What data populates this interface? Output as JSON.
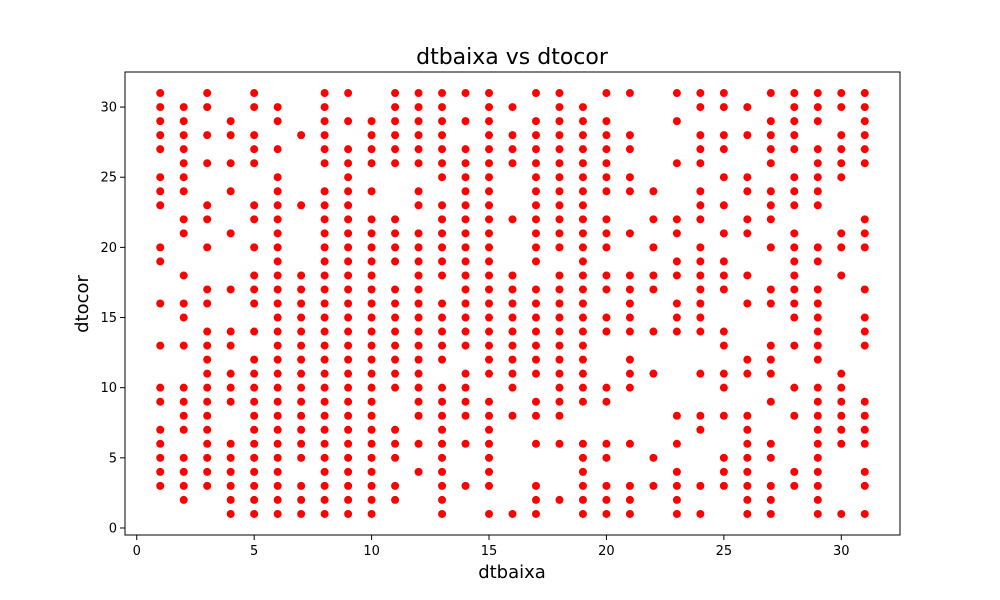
{
  "chart_data": {
    "type": "scatter",
    "title": "dtbaixa vs dtocor",
    "xlabel": "dtbaixa",
    "ylabel": "dtocor",
    "xlim": [
      -0.5,
      32.5
    ],
    "ylim": [
      -0.5,
      32.5
    ],
    "xticks": [
      0,
      5,
      10,
      15,
      20,
      25,
      30
    ],
    "yticks": [
      0,
      5,
      10,
      15,
      20,
      25,
      30
    ],
    "grid": false,
    "color": "#ff0000",
    "columns": [
      {
        "x": 1,
        "y": [
          3,
          4,
          5,
          6,
          7,
          9,
          10,
          13,
          16,
          19,
          20,
          23,
          24,
          25,
          27,
          28,
          29,
          30,
          31
        ]
      },
      {
        "x": 2,
        "y": [
          2,
          3,
          4,
          5,
          7,
          8,
          9,
          10,
          13,
          15,
          16,
          18,
          21,
          22,
          24,
          25,
          26,
          27,
          28,
          29,
          30
        ]
      },
      {
        "x": 3,
        "y": [
          3,
          4,
          5,
          6,
          7,
          8,
          9,
          10,
          11,
          12,
          13,
          14,
          16,
          17,
          20,
          22,
          23,
          26,
          28,
          30,
          31
        ]
      },
      {
        "x": 4,
        "y": [
          1,
          2,
          3,
          4,
          5,
          6,
          9,
          10,
          11,
          13,
          14,
          17,
          21,
          24,
          26,
          28,
          29
        ]
      },
      {
        "x": 5,
        "y": [
          1,
          2,
          3,
          4,
          5,
          6,
          7,
          8,
          9,
          10,
          11,
          12,
          14,
          16,
          17,
          18,
          20,
          22,
          23,
          26,
          27,
          28,
          30,
          31
        ]
      },
      {
        "x": 6,
        "y": [
          1,
          2,
          3,
          4,
          5,
          6,
          7,
          8,
          9,
          10,
          11,
          12,
          13,
          14,
          15,
          16,
          17,
          18,
          19,
          20,
          21,
          22,
          23,
          24,
          25,
          27,
          29,
          30
        ]
      },
      {
        "x": 7,
        "y": [
          1,
          2,
          3,
          5,
          6,
          7,
          8,
          9,
          10,
          11,
          12,
          13,
          14,
          15,
          16,
          17,
          18,
          23,
          28
        ]
      },
      {
        "x": 8,
        "y": [
          1,
          2,
          3,
          4,
          5,
          6,
          7,
          8,
          9,
          10,
          11,
          12,
          13,
          14,
          15,
          16,
          17,
          18,
          19,
          20,
          21,
          22,
          23,
          24,
          26,
          27,
          28,
          29,
          30,
          31
        ]
      },
      {
        "x": 9,
        "y": [
          1,
          2,
          3,
          4,
          5,
          6,
          7,
          8,
          9,
          10,
          11,
          12,
          13,
          14,
          15,
          16,
          17,
          18,
          19,
          20,
          21,
          22,
          23,
          24,
          25,
          26,
          27,
          29,
          31
        ]
      },
      {
        "x": 10,
        "y": [
          1,
          2,
          3,
          4,
          5,
          6,
          7,
          8,
          9,
          10,
          11,
          12,
          13,
          14,
          15,
          16,
          17,
          18,
          19,
          20,
          21,
          22,
          24,
          26,
          27,
          28,
          29
        ]
      },
      {
        "x": 11,
        "y": [
          2,
          3,
          5,
          6,
          7,
          10,
          11,
          12,
          13,
          14,
          15,
          16,
          17,
          19,
          20,
          21,
          22,
          26,
          27,
          28,
          29,
          30,
          31
        ]
      },
      {
        "x": 12,
        "y": [
          4,
          6,
          8,
          9,
          10,
          11,
          12,
          13,
          14,
          15,
          16,
          17,
          18,
          19,
          20,
          21,
          23,
          24,
          26,
          27,
          28,
          29,
          30,
          31
        ]
      },
      {
        "x": 13,
        "y": [
          1,
          2,
          3,
          4,
          5,
          6,
          7,
          8,
          9,
          10,
          12,
          13,
          14,
          15,
          16,
          18,
          19,
          20,
          21,
          22,
          23,
          25,
          26,
          27,
          28,
          29,
          30,
          31
        ]
      },
      {
        "x": 14,
        "y": [
          3,
          6,
          8,
          9,
          10,
          11,
          13,
          14,
          15,
          16,
          17,
          18,
          19,
          20,
          21,
          22,
          23,
          24,
          25,
          26,
          27,
          29,
          31
        ]
      },
      {
        "x": 15,
        "y": [
          1,
          3,
          4,
          5,
          6,
          7,
          8,
          9,
          11,
          12,
          13,
          14,
          15,
          16,
          17,
          18,
          19,
          20,
          21,
          22,
          23,
          24,
          25,
          26,
          27,
          28,
          29,
          30,
          31
        ]
      },
      {
        "x": 16,
        "y": [
          1,
          8,
          10,
          11,
          12,
          13,
          14,
          15,
          16,
          17,
          18,
          22,
          26,
          27,
          28,
          30
        ]
      },
      {
        "x": 17,
        "y": [
          1,
          2,
          3,
          6,
          8,
          9,
          11,
          12,
          13,
          14,
          15,
          16,
          17,
          19,
          20,
          21,
          22,
          23,
          24,
          25,
          26,
          27,
          28,
          29,
          31
        ]
      },
      {
        "x": 18,
        "y": [
          2,
          6,
          8,
          9,
          10,
          11,
          12,
          13,
          14,
          15,
          16,
          17,
          18,
          20,
          21,
          22,
          23,
          24,
          25,
          26,
          27,
          28,
          29,
          30,
          31
        ]
      },
      {
        "x": 19,
        "y": [
          1,
          2,
          3,
          4,
          5,
          6,
          9,
          10,
          11,
          12,
          13,
          14,
          15,
          16,
          17,
          18,
          19,
          20,
          21,
          22,
          23,
          24,
          25,
          26,
          27,
          28,
          29,
          30
        ]
      },
      {
        "x": 20,
        "y": [
          1,
          2,
          3,
          5,
          6,
          9,
          10,
          14,
          15,
          17,
          18,
          20,
          21,
          22,
          24,
          25,
          26,
          27,
          28,
          29,
          31
        ]
      },
      {
        "x": 21,
        "y": [
          1,
          2,
          3,
          6,
          10,
          11,
          12,
          14,
          15,
          16,
          17,
          18,
          21,
          24,
          25,
          27,
          28,
          31
        ]
      },
      {
        "x": 22,
        "y": [
          3,
          5,
          11,
          14,
          17,
          18,
          20,
          22,
          24
        ]
      },
      {
        "x": 23,
        "y": [
          1,
          2,
          3,
          4,
          6,
          8,
          14,
          15,
          16,
          18,
          19,
          21,
          22,
          26,
          29,
          31
        ]
      },
      {
        "x": 24,
        "y": [
          1,
          3,
          7,
          8,
          11,
          14,
          15,
          16,
          17,
          18,
          19,
          20,
          22,
          23,
          24,
          26,
          27,
          28,
          30,
          31
        ]
      },
      {
        "x": 25,
        "y": [
          3,
          4,
          5,
          8,
          10,
          11,
          13,
          14,
          17,
          18,
          19,
          21,
          23,
          25,
          27,
          28,
          30,
          31
        ]
      },
      {
        "x": 26,
        "y": [
          1,
          2,
          3,
          4,
          5,
          6,
          7,
          8,
          11,
          12,
          16,
          18,
          21,
          22,
          24,
          25,
          28,
          30
        ]
      },
      {
        "x": 27,
        "y": [
          1,
          2,
          3,
          5,
          6,
          9,
          11,
          12,
          13,
          16,
          17,
          20,
          22,
          23,
          24,
          26,
          27,
          28,
          29,
          31
        ]
      },
      {
        "x": 28,
        "y": [
          3,
          4,
          8,
          10,
          13,
          15,
          16,
          17,
          18,
          19,
          20,
          21,
          23,
          24,
          25,
          27,
          28,
          29,
          30,
          31
        ]
      },
      {
        "x": 29,
        "y": [
          1,
          2,
          3,
          4,
          5,
          6,
          7,
          8,
          9,
          10,
          12,
          13,
          14,
          15,
          16,
          17,
          19,
          20,
          23,
          24,
          25,
          26,
          27,
          29,
          30,
          31
        ]
      },
      {
        "x": 30,
        "y": [
          1,
          6,
          7,
          8,
          9,
          10,
          11,
          18,
          20,
          21,
          25,
          26,
          27,
          28,
          30,
          31
        ]
      },
      {
        "x": 31,
        "y": [
          1,
          3,
          4,
          6,
          7,
          8,
          9,
          13,
          14,
          15,
          17,
          20,
          21,
          22,
          26,
          27,
          28,
          29,
          30,
          31
        ]
      }
    ]
  }
}
